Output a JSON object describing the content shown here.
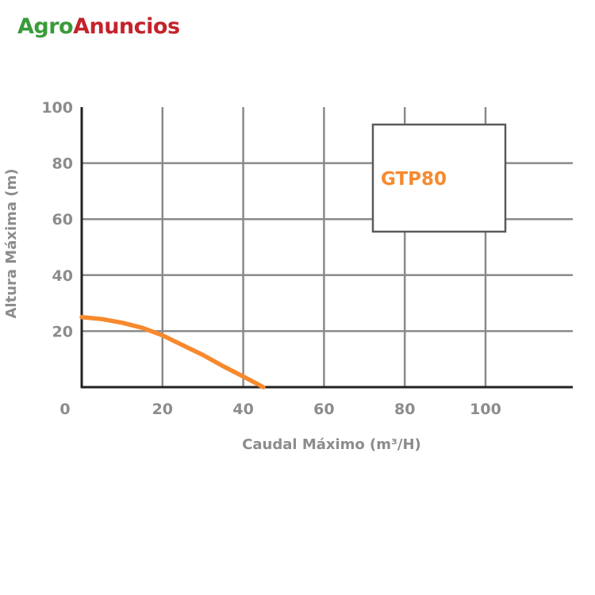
{
  "brand": {
    "part1": "Agro",
    "part2": "Anuncios"
  },
  "colors": {
    "grid": "#8a8a8a",
    "curve": "#f7892e",
    "text": "#8c8c8c",
    "axis": "#222222",
    "brand_green": "#3a9a3a",
    "brand_red": "#c4232b"
  },
  "chart_data": {
    "type": "line",
    "xlabel": "Caudal Máximo (m³/H)",
    "ylabel": "Altura Máxima (m)",
    "xlim": [
      0,
      120
    ],
    "ylim": [
      0,
      100
    ],
    "xticks": [
      0,
      20,
      40,
      60,
      80,
      100
    ],
    "yticks": [
      20,
      40,
      60,
      80,
      100
    ],
    "grid": true,
    "legend_position": "top-right",
    "series": [
      {
        "name": "GTP80",
        "color": "#f7892e",
        "x": [
          0,
          5,
          10,
          15,
          20,
          25,
          30,
          35,
          40,
          45
        ],
        "y": [
          25,
          24.3,
          23,
          21.2,
          18.5,
          15,
          11.5,
          7.5,
          3.8,
          0
        ]
      }
    ]
  }
}
